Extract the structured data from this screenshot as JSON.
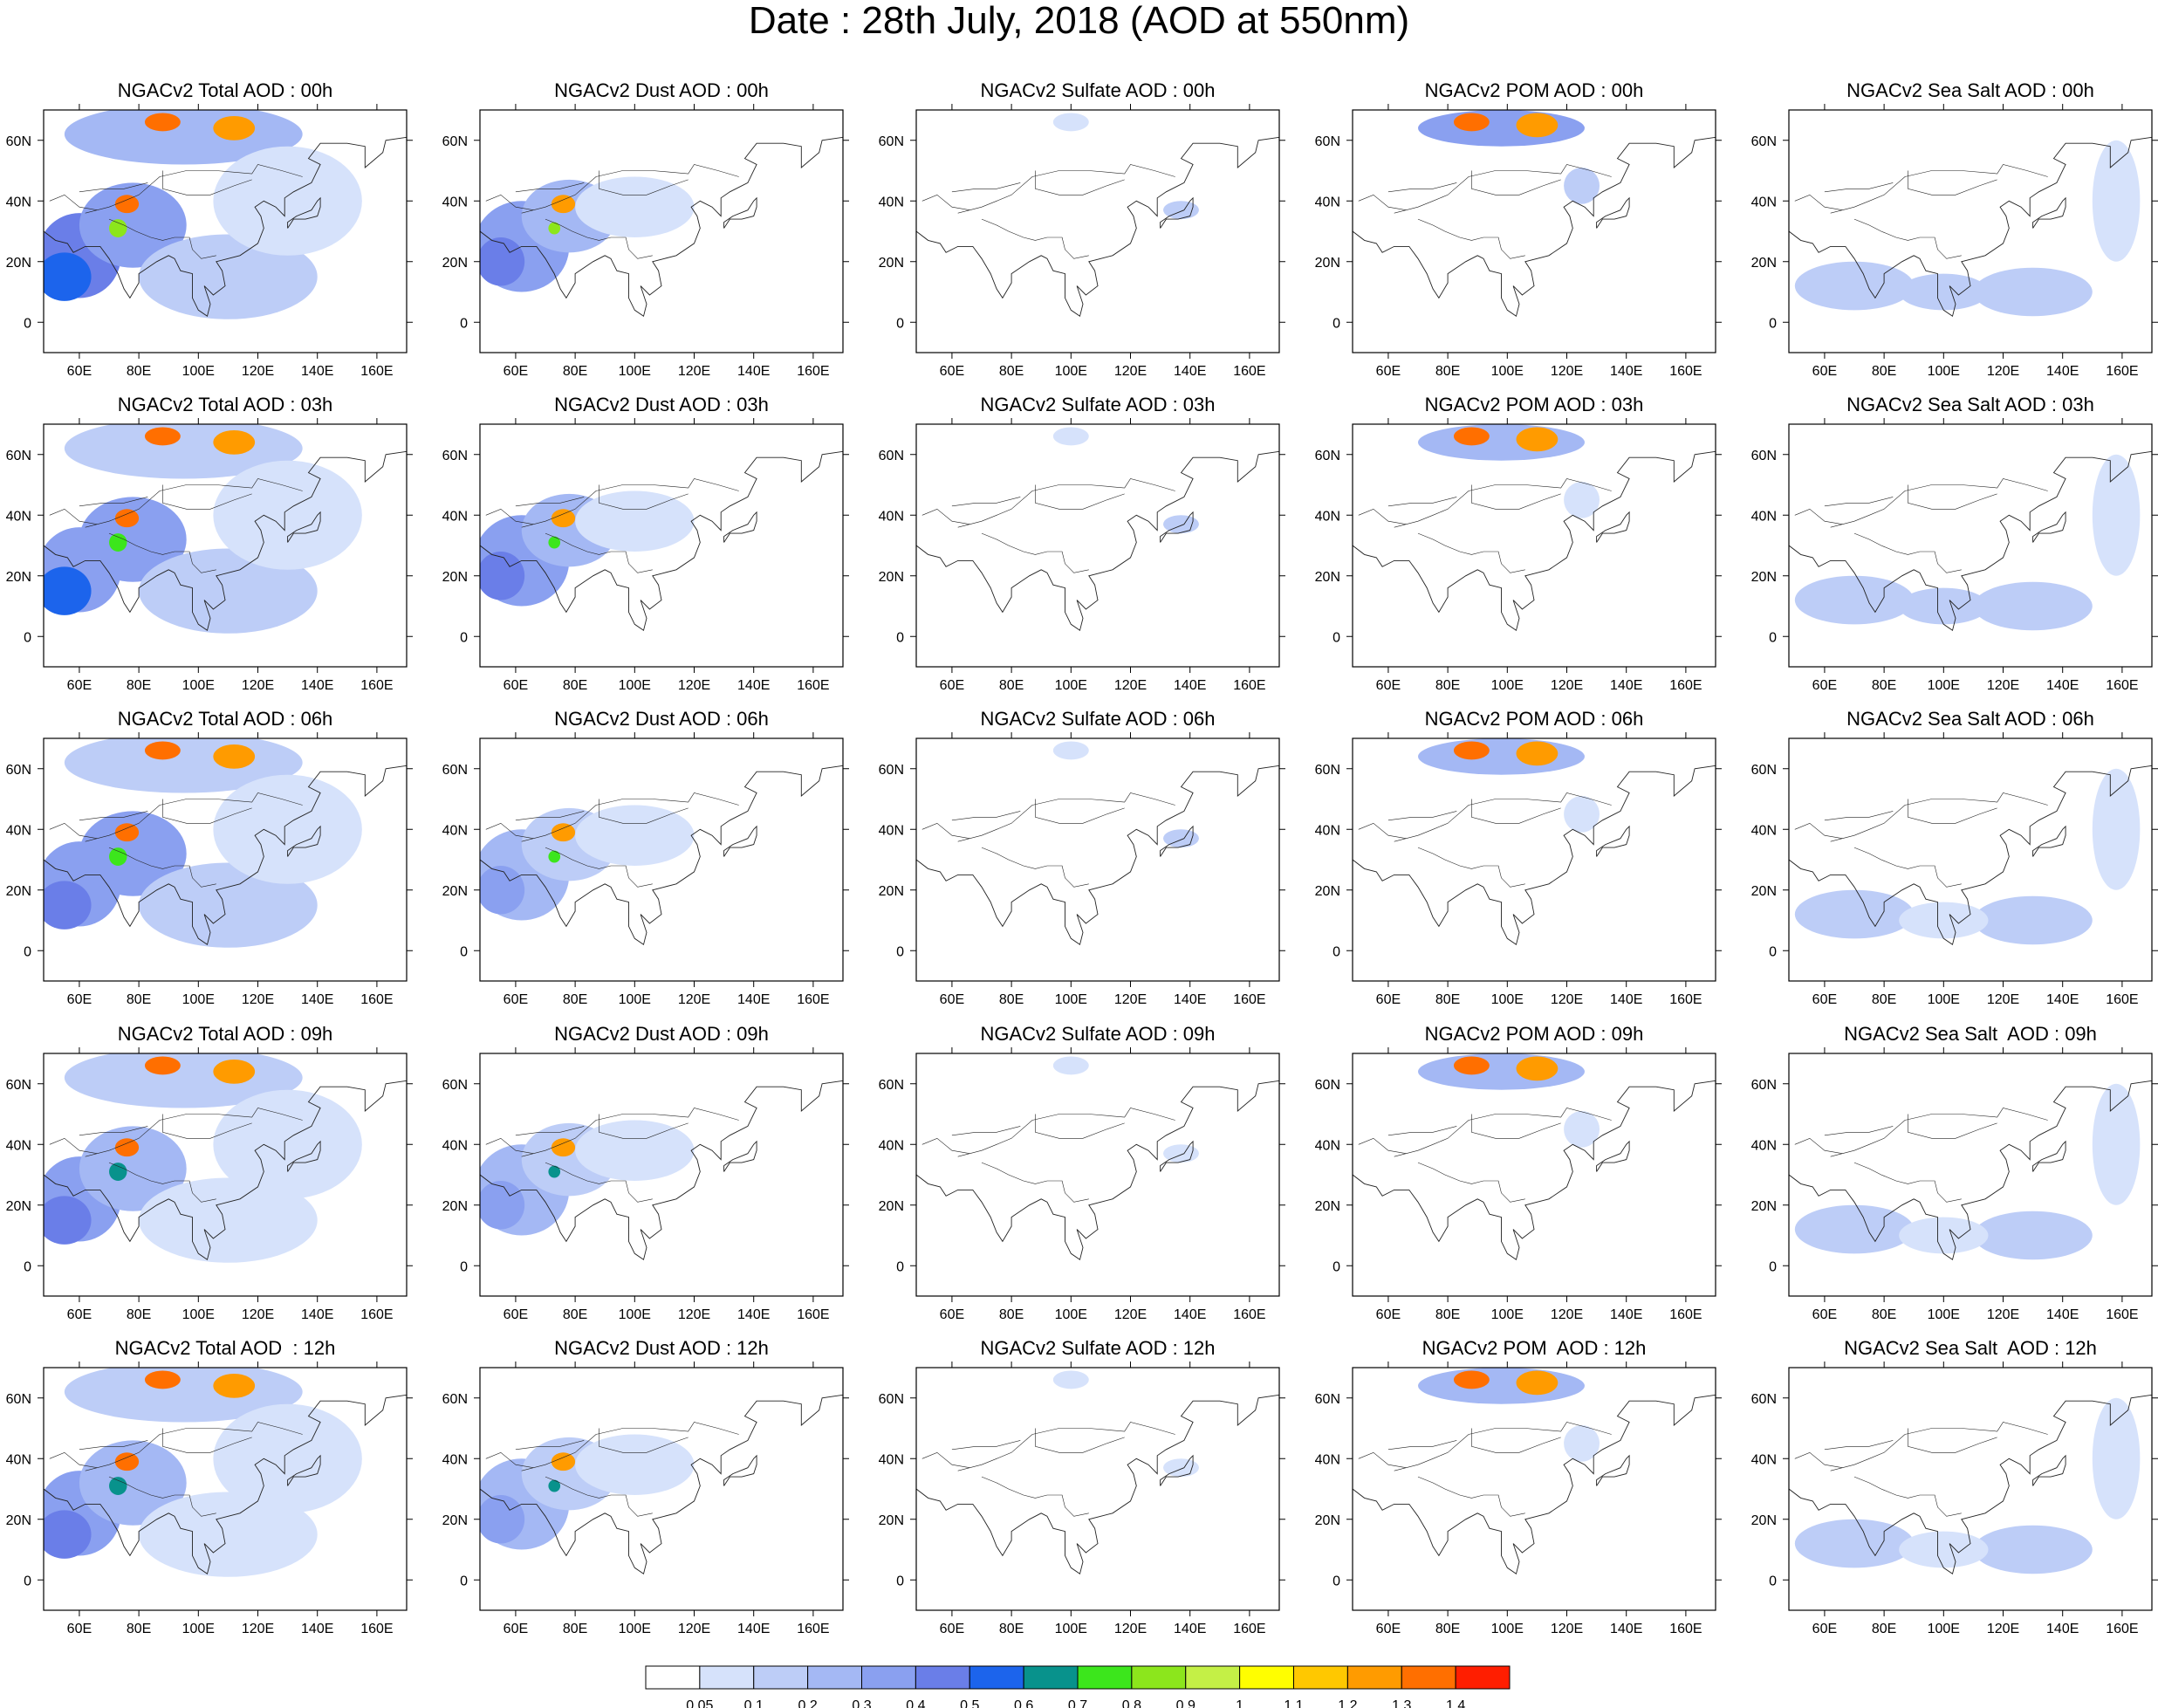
{
  "figure": {
    "title": "Date : 28th July, 2018 (AOD at 550nm)"
  },
  "axes": {
    "lon_ticks": [
      "60E",
      "80E",
      "100E",
      "120E",
      "140E",
      "160E"
    ],
    "lat_ticks": [
      "60N",
      "40N",
      "20N",
      "0"
    ],
    "lon_values": [
      60,
      80,
      100,
      120,
      140,
      160
    ],
    "lat_values": [
      60,
      40,
      20,
      0
    ],
    "lon_range": [
      48,
      170
    ],
    "lat_range": [
      -10,
      70
    ]
  },
  "rows": [
    "00h",
    "03h",
    "06h",
    "09h",
    "12h"
  ],
  "columns": [
    "Total",
    "Dust",
    "Sulfate",
    "POM",
    "Sea Salt"
  ],
  "panel_titles": [
    [
      "NGACv2 Total AOD : 00h",
      "NGACv2 Dust AOD : 00h",
      "NGACv2 Sulfate AOD : 00h",
      "NGACv2 POM AOD : 00h",
      "NGACv2 Sea Salt AOD : 00h"
    ],
    [
      "NGACv2 Total AOD : 03h",
      "NGACv2 Dust AOD : 03h",
      "NGACv2 Sulfate AOD : 03h",
      "NGACv2 POM AOD : 03h",
      "NGACv2 Sea Salt AOD : 03h"
    ],
    [
      "NGACv2 Total AOD : 06h",
      "NGACv2 Dust AOD : 06h",
      "NGACv2 Sulfate AOD : 06h",
      "NGACv2 POM AOD : 06h",
      "NGACv2 Sea Salt AOD : 06h"
    ],
    [
      "NGACv2 Total AOD : 09h",
      "NGACv2 Dust AOD : 09h",
      "NGACv2 Sulfate AOD : 09h",
      "NGACv2 POM AOD : 09h",
      "NGACv2 Sea Salt  AOD : 09h"
    ],
    [
      "NGACv2 Total AOD  : 12h",
      "NGACv2 Dust AOD : 12h",
      "NGACv2 Sulfate AOD : 12h",
      "NGACv2 POM  AOD : 12h",
      "NGACv2 Sea Salt  AOD : 12h"
    ]
  ],
  "colorbar": {
    "labels": [
      "0.05",
      "0.1",
      "0.2",
      "0.3",
      "0.4",
      "0.5",
      "0.6",
      "0.7",
      "0.8",
      "0.9",
      "1",
      "1.1",
      "1.2",
      "1.3",
      "1.4"
    ],
    "colors": [
      "#ffffff",
      "#d6e2fb",
      "#bdcdf7",
      "#a4b8f4",
      "#8aa0f0",
      "#6a7ee8",
      "#1c64ec",
      "#08928c",
      "#3ce61c",
      "#8ce61c",
      "#c4f046",
      "#fffe00",
      "#ffc800",
      "#ff9b00",
      "#ff6f00",
      "#ff1e00"
    ]
  },
  "aod_features": {
    "Total": [
      {
        "lon": 60,
        "lat": 22,
        "rx": 14,
        "ry": 14,
        "v": 0.42
      },
      {
        "lon": 55,
        "lat": 15,
        "rx": 9,
        "ry": 8,
        "v": 0.55
      },
      {
        "lon": 78,
        "lat": 32,
        "rx": 18,
        "ry": 14,
        "v": 0.35
      },
      {
        "lon": 76,
        "lat": 39,
        "rx": 4,
        "ry": 3,
        "v": 1.35
      },
      {
        "lon": 73,
        "lat": 31,
        "rx": 3,
        "ry": 3,
        "v": 0.85
      },
      {
        "lon": 95,
        "lat": 62,
        "rx": 40,
        "ry": 10,
        "v": 0.2
      },
      {
        "lon": 88,
        "lat": 66,
        "rx": 6,
        "ry": 3,
        "v": 1.3
      },
      {
        "lon": 112,
        "lat": 64,
        "rx": 7,
        "ry": 4,
        "v": 1.2
      },
      {
        "lon": 110,
        "lat": 15,
        "rx": 30,
        "ry": 14,
        "v": 0.12
      },
      {
        "lon": 130,
        "lat": 40,
        "rx": 25,
        "ry": 18,
        "v": 0.08
      }
    ],
    "Dust": [
      {
        "lon": 62,
        "lat": 25,
        "rx": 16,
        "ry": 15,
        "v": 0.32
      },
      {
        "lon": 55,
        "lat": 20,
        "rx": 8,
        "ry": 8,
        "v": 0.45
      },
      {
        "lon": 78,
        "lat": 35,
        "rx": 16,
        "ry": 12,
        "v": 0.22
      },
      {
        "lon": 76,
        "lat": 39,
        "rx": 4,
        "ry": 3,
        "v": 1.2
      },
      {
        "lon": 73,
        "lat": 31,
        "rx": 2,
        "ry": 2,
        "v": 0.85
      },
      {
        "lon": 100,
        "lat": 38,
        "rx": 20,
        "ry": 10,
        "v": 0.07
      }
    ],
    "Sulfate": [
      {
        "lon": 137,
        "lat": 37,
        "rx": 6,
        "ry": 3,
        "v": 0.12
      },
      {
        "lon": 100,
        "lat": 66,
        "rx": 6,
        "ry": 3,
        "v": 0.08
      }
    ],
    "POM": [
      {
        "lon": 98,
        "lat": 64,
        "rx": 28,
        "ry": 6,
        "v": 0.3
      },
      {
        "lon": 88,
        "lat": 66,
        "rx": 6,
        "ry": 3,
        "v": 1.3
      },
      {
        "lon": 110,
        "lat": 65,
        "rx": 7,
        "ry": 4,
        "v": 1.2
      },
      {
        "lon": 125,
        "lat": 45,
        "rx": 6,
        "ry": 6,
        "v": 0.1
      }
    ],
    "Sea Salt": [
      {
        "lon": 70,
        "lat": 12,
        "rx": 20,
        "ry": 8,
        "v": 0.15
      },
      {
        "lon": 130,
        "lat": 10,
        "rx": 20,
        "ry": 8,
        "v": 0.15
      },
      {
        "lon": 158,
        "lat": 40,
        "rx": 8,
        "ry": 20,
        "v": 0.09
      },
      {
        "lon": 100,
        "lat": 10,
        "rx": 15,
        "ry": 6,
        "v": 0.11
      }
    ]
  }
}
